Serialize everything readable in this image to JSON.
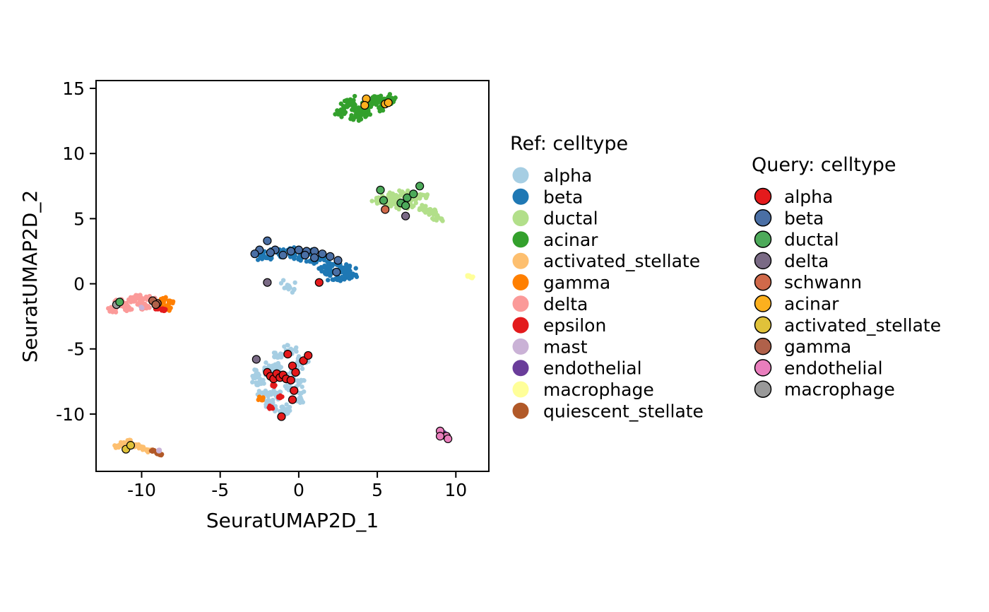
{
  "chart_data": {
    "type": "scatter",
    "xlabel": "SeuratUMAP2D_1",
    "ylabel": "SeuratUMAP2D_2",
    "xlim": [
      -12.9,
      12.1
    ],
    "ylim": [
      -14.4,
      15.6
    ],
    "x_ticks": [
      -10,
      -5,
      0,
      5,
      10
    ],
    "y_ticks": [
      15,
      10,
      5,
      0,
      -5,
      -10
    ],
    "x_tick_labels": [
      "-10",
      "-5",
      "0",
      "5",
      "10"
    ],
    "y_tick_labels": [
      "15",
      "10",
      "5",
      "0",
      "-5",
      "-10"
    ],
    "grid": false,
    "legend_placement": "right",
    "ref_legend": {
      "title": "Ref: celltype",
      "entries": [
        {
          "name": "alpha",
          "color": "#A6CEE3"
        },
        {
          "name": "beta",
          "color": "#1F78B4"
        },
        {
          "name": "ductal",
          "color": "#B2DF8A"
        },
        {
          "name": "acinar",
          "color": "#33A02C"
        },
        {
          "name": "activated_stellate",
          "color": "#FDBF6F"
        },
        {
          "name": "gamma",
          "color": "#FF7F00"
        },
        {
          "name": "delta",
          "color": "#FB9A99"
        },
        {
          "name": "epsilon",
          "color": "#E31A1C"
        },
        {
          "name": "mast",
          "color": "#CAB2D6"
        },
        {
          "name": "endothelial",
          "color": "#6A3D9A"
        },
        {
          "name": "macrophage",
          "color": "#FFFF99"
        },
        {
          "name": "quiescent_stellate",
          "color": "#B15928"
        }
      ]
    },
    "query_legend": {
      "title": "Query: celltype",
      "entries": [
        {
          "name": "alpha",
          "color": "#E41A1C"
        },
        {
          "name": "beta",
          "color": "#4A6FA5"
        },
        {
          "name": "ductal",
          "color": "#4DAA5A"
        },
        {
          "name": "delta",
          "color": "#7A6A85"
        },
        {
          "name": "schwann",
          "color": "#D0694A"
        },
        {
          "name": "acinar",
          "color": "#FCB01E"
        },
        {
          "name": "activated_stellate",
          "color": "#E0C23A"
        },
        {
          "name": "gamma",
          "color": "#B0614A"
        },
        {
          "name": "endothelial",
          "color": "#E97EBD"
        },
        {
          "name": "macrophage",
          "color": "#999999"
        }
      ]
    },
    "ref_clusters": [
      {
        "celltype": "acinar",
        "points": [
          [
            3.4,
            14.0
          ],
          [
            2.8,
            13.2
          ],
          [
            4.5,
            13.8
          ],
          [
            5.5,
            14.1
          ],
          [
            6.0,
            14.2
          ],
          [
            3.8,
            13.5
          ],
          [
            4.8,
            14.1
          ],
          [
            5.2,
            13.6
          ],
          [
            3.1,
            13.8
          ],
          [
            3.6,
            12.8
          ],
          [
            4.2,
            13.0
          ],
          [
            5.8,
            13.9
          ]
        ]
      },
      {
        "celltype": "ductal",
        "points": [
          [
            5.5,
            6.5
          ],
          [
            6.2,
            6.8
          ],
          [
            7.0,
            6.2
          ],
          [
            7.8,
            6.8
          ],
          [
            8.5,
            5.5
          ],
          [
            8.8,
            5.1
          ],
          [
            6.5,
            6.0
          ],
          [
            7.3,
            6.6
          ],
          [
            5.8,
            6.2
          ],
          [
            8.0,
            5.8
          ],
          [
            6.8,
            6.9
          ],
          [
            5.2,
            6.4
          ]
        ]
      },
      {
        "celltype": "beta",
        "points": [
          [
            -2.5,
            2.3
          ],
          [
            -1.5,
            2.5
          ],
          [
            -0.5,
            2.6
          ],
          [
            0.5,
            2.4
          ],
          [
            1.5,
            2.0
          ],
          [
            2.2,
            1.5
          ],
          [
            2.8,
            1.0
          ],
          [
            3.2,
            0.6
          ],
          [
            2.0,
            0.8
          ],
          [
            1.0,
            1.8
          ],
          [
            -1.0,
            2.2
          ],
          [
            0.0,
            2.0
          ],
          [
            1.8,
            1.2
          ],
          [
            2.5,
            0.3
          ],
          [
            -2.0,
            2.0
          ],
          [
            3.0,
            1.3
          ]
        ]
      },
      {
        "celltype": "alpha",
        "points": [
          [
            -2.5,
            -7.5
          ],
          [
            -2.0,
            -6.5
          ],
          [
            -1.5,
            -8.5
          ],
          [
            -1.0,
            -9.5
          ],
          [
            -0.5,
            -8.0
          ],
          [
            0.0,
            -7.5
          ],
          [
            0.2,
            -6.0
          ],
          [
            -0.5,
            -5.0
          ],
          [
            -1.2,
            -5.5
          ],
          [
            -2.2,
            -8.5
          ],
          [
            -1.8,
            -9.2
          ],
          [
            -0.8,
            -9.8
          ],
          [
            0.1,
            -8.8
          ],
          [
            -1.5,
            -6.2
          ],
          [
            -0.3,
            -6.8
          ],
          [
            -2.6,
            -7.0
          ],
          [
            -0.6,
            -0.2
          ]
        ]
      },
      {
        "celltype": "delta",
        "points": [
          [
            -11.8,
            -2.0
          ],
          [
            -11.2,
            -1.6
          ],
          [
            -10.5,
            -1.2
          ],
          [
            -10.0,
            -1.5
          ],
          [
            -9.5,
            -1.1
          ],
          [
            -10.8,
            -1.9
          ],
          [
            -11.5,
            -1.4
          ],
          [
            -9.8,
            -1.8
          ],
          [
            -10.2,
            -1.0
          ]
        ]
      },
      {
        "celltype": "gamma",
        "points": [
          [
            -8.8,
            -1.5
          ],
          [
            -8.5,
            -1.8
          ],
          [
            -8.2,
            -1.4
          ],
          [
            -8.6,
            -1.2
          ],
          [
            -8.3,
            -1.9
          ],
          [
            -2.4,
            -8.8
          ],
          [
            -8.9,
            -1.7
          ]
        ]
      },
      {
        "celltype": "epsilon",
        "points": [
          [
            -9.0,
            -1.9
          ],
          [
            -8.6,
            -2.0
          ],
          [
            -1.8,
            -9.5
          ],
          [
            -1.2,
            -8.7
          ],
          [
            -1.6,
            -7.8
          ]
        ]
      },
      {
        "celltype": "activated_stellate",
        "points": [
          [
            -11.2,
            -12.3
          ],
          [
            -10.8,
            -12.1
          ],
          [
            -10.4,
            -12.4
          ],
          [
            -10.0,
            -12.6
          ],
          [
            -9.6,
            -12.8
          ],
          [
            -11.5,
            -12.5
          ]
        ]
      },
      {
        "celltype": "quiescent_stellate",
        "points": [
          [
            -9.3,
            -12.8
          ],
          [
            -9.0,
            -13.0
          ],
          [
            -8.8,
            -13.1
          ]
        ]
      },
      {
        "celltype": "mast",
        "points": [
          [
            -10.0,
            -1.8
          ],
          [
            -8.9,
            -12.8
          ]
        ]
      },
      {
        "celltype": "endothelial",
        "points": [
          [
            9.2,
            -11.5
          ],
          [
            9.4,
            -11.6
          ]
        ]
      },
      {
        "celltype": "macrophage",
        "points": [
          [
            10.8,
            0.6
          ],
          [
            11.0,
            0.5
          ]
        ]
      }
    ],
    "ref_spread": {
      "acinar": [
        0.28,
        0.22
      ],
      "ductal": [
        0.28,
        0.2
      ],
      "beta": [
        0.35,
        0.15
      ],
      "alpha": [
        0.3,
        0.3
      ],
      "delta": [
        0.2,
        0.14
      ],
      "gamma": [
        0.12,
        0.1
      ],
      "epsilon": [
        0.08,
        0.08
      ],
      "activated_stellate": [
        0.12,
        0.08
      ],
      "quiescent_stellate": [
        0.08,
        0.05
      ],
      "mast": [
        0.04,
        0.04
      ],
      "endothelial": [
        0.06,
        0.06
      ],
      "macrophage": [
        0.06,
        0.05
      ]
    },
    "query_points": [
      {
        "celltype": "acinar",
        "points": [
          [
            4.3,
            14.2
          ],
          [
            4.2,
            13.7
          ],
          [
            5.5,
            13.8
          ],
          [
            5.7,
            13.9
          ]
        ]
      },
      {
        "celltype": "ductal",
        "points": [
          [
            5.2,
            7.2
          ],
          [
            5.4,
            6.4
          ],
          [
            6.5,
            6.2
          ],
          [
            6.9,
            6.6
          ],
          [
            7.3,
            6.9
          ],
          [
            7.7,
            7.5
          ],
          [
            6.8,
            6.0
          ]
        ]
      },
      {
        "celltype": "schwann",
        "points": [
          [
            5.5,
            5.7
          ]
        ]
      },
      {
        "celltype": "delta",
        "points": [
          [
            6.8,
            5.2
          ],
          [
            -2.0,
            0.1
          ],
          [
            -2.7,
            -5.8
          ],
          [
            -1.0,
            -7.0
          ]
        ]
      },
      {
        "celltype": "beta",
        "points": [
          [
            -2.5,
            2.6
          ],
          [
            -2.0,
            3.3
          ],
          [
            -1.5,
            2.6
          ],
          [
            -1.0,
            2.2
          ],
          [
            -0.5,
            2.5
          ],
          [
            0.0,
            2.6
          ],
          [
            0.5,
            2.5
          ],
          [
            1.0,
            2.5
          ],
          [
            1.5,
            2.3
          ],
          [
            2.0,
            2.1
          ],
          [
            2.5,
            1.8
          ],
          [
            1.0,
            2.0
          ],
          [
            -1.8,
            2.4
          ],
          [
            0.4,
            2.2
          ],
          [
            2.4,
            0.9
          ],
          [
            -2.8,
            2.3
          ]
        ]
      },
      {
        "celltype": "alpha",
        "points": [
          [
            -2.0,
            -6.8
          ],
          [
            -1.8,
            -7.1
          ],
          [
            -1.6,
            -7.3
          ],
          [
            -1.4,
            -6.9
          ],
          [
            -1.2,
            -7.2
          ],
          [
            -1.0,
            -7.0
          ],
          [
            -0.8,
            -7.3
          ],
          [
            -0.7,
            -5.4
          ],
          [
            -0.4,
            -6.3
          ],
          [
            -0.5,
            -7.4
          ],
          [
            -0.2,
            -6.8
          ],
          [
            0.3,
            -5.9
          ],
          [
            0.6,
            -5.5
          ],
          [
            -0.3,
            -8.2
          ],
          [
            -0.4,
            -8.9
          ],
          [
            -1.1,
            -10.2
          ],
          [
            1.3,
            0.1
          ]
        ]
      },
      {
        "celltype": "macrophage",
        "points": [
          [
            -11.6,
            -1.6
          ]
        ]
      },
      {
        "celltype": "ductal",
        "points": [
          [
            -11.4,
            -1.4
          ]
        ]
      },
      {
        "celltype": "gamma",
        "points": [
          [
            -9.0,
            -1.5
          ],
          [
            -9.3,
            -1.3
          ],
          [
            -9.1,
            -1.6
          ]
        ]
      },
      {
        "celltype": "activated_stellate",
        "points": [
          [
            -11.0,
            -12.7
          ],
          [
            -10.7,
            -12.4
          ]
        ]
      },
      {
        "celltype": "endothelial",
        "points": [
          [
            9.0,
            -11.3
          ],
          [
            9.4,
            -11.7
          ],
          [
            9.0,
            -11.7
          ],
          [
            9.5,
            -11.9
          ]
        ]
      }
    ]
  }
}
